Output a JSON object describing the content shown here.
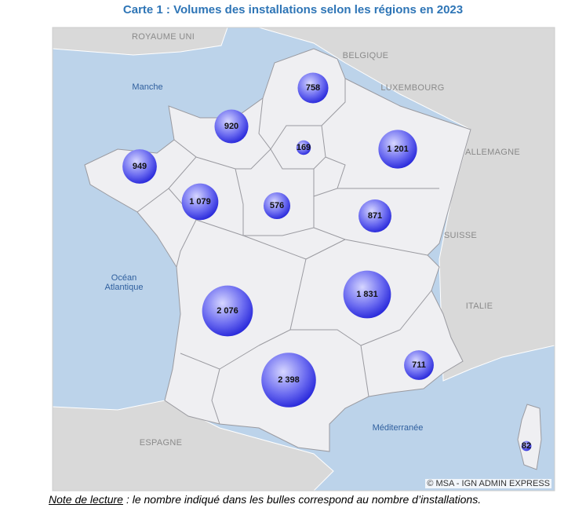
{
  "title": "Carte 1 : Volumes des installations selon les régions en 2023",
  "map": {
    "country_labels": [
      "ROYAUME UNI",
      "BELGIQUE",
      "LUXEMBOURG",
      "ALLEMAGNE",
      "SUISSE",
      "ITALIE",
      "ESPAGNE"
    ],
    "sea_labels": [
      "Manche",
      "Océan Atlantique",
      "Méditerranée"
    ],
    "credit": "© MSA - IGN ADMIN EXPRESS"
  },
  "bubbles": {
    "values": [
      758,
      920,
      169,
      1201,
      949,
      1079,
      576,
      871,
      2076,
      1831,
      2398,
      711,
      82
    ],
    "value_labels": [
      "758",
      "920",
      "169",
      "1 201",
      "949",
      "1 079",
      "576",
      "871",
      "2 076",
      "1 831",
      "2 398",
      "711",
      "82"
    ]
  },
  "note": {
    "lead": "Note de lecture",
    "text": ": le nombre indiqué dans les bulles correspond au nombre d’installations."
  }
}
